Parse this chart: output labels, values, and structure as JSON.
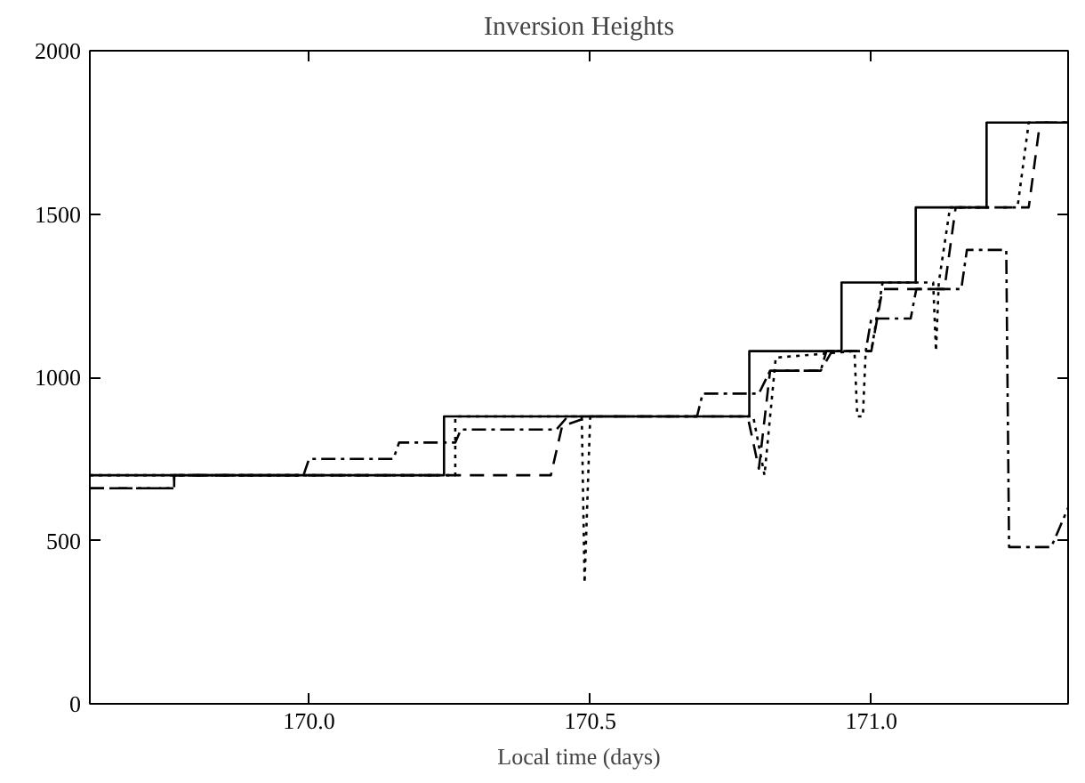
{
  "chart_data": {
    "type": "line",
    "title": "Inversion Heights",
    "xlabel": "Local time (days)",
    "xlim": [
      169.61,
      171.35
    ],
    "ylim": [
      0,
      2000
    ],
    "xticks": [
      {
        "value": 170.0,
        "label": "170.0"
      },
      {
        "value": 170.5,
        "label": "170.5"
      },
      {
        "value": 171.0,
        "label": "171.0"
      }
    ],
    "yticks": [
      0,
      500,
      1000,
      1500,
      2000
    ],
    "grid": false,
    "marker": "none",
    "series": [
      {
        "color": "#000000",
        "line_style": "solid",
        "x": [
          169.61,
          170.24,
          170.24,
          170.783,
          170.783,
          170.947,
          170.947,
          171.079,
          171.079,
          171.205,
          171.205,
          171.35
        ],
        "values": [
          700,
          700,
          880,
          880,
          1080,
          1080,
          1290,
          1290,
          1520,
          1520,
          1780,
          1780
        ]
      },
      {
        "color": "#000000",
        "line_style": "dotted",
        "x": [
          169.61,
          170.26,
          170.26,
          170.485,
          170.49,
          170.5,
          170.79,
          170.81,
          170.83,
          170.97,
          170.975,
          170.985,
          170.99,
          171.0,
          171.02,
          171.11,
          171.115,
          171.12,
          171.14,
          171.26,
          171.28,
          171.35
        ],
        "values": [
          700,
          700,
          880,
          880,
          370,
          880,
          880,
          700,
          1060,
          1080,
          880,
          880,
          1080,
          1080,
          1290,
          1290,
          1080,
          1290,
          1520,
          1520,
          1780,
          1780
        ]
      },
      {
        "color": "#000000",
        "line_style": "dashed",
        "x": [
          169.61,
          169.76,
          169.76,
          170.43,
          170.45,
          170.5,
          170.78,
          170.8,
          170.82,
          170.91,
          170.93,
          171.0,
          171.02,
          171.13,
          171.15,
          171.28,
          171.3,
          171.35
        ],
        "values": [
          660,
          660,
          700,
          700,
          850,
          880,
          880,
          720,
          1020,
          1020,
          1080,
          1080,
          1270,
          1270,
          1520,
          1520,
          1780,
          1780
        ]
      },
      {
        "color": "#000000",
        "line_style": "dashdot",
        "x": [
          169.61,
          169.76,
          169.76,
          169.99,
          170.0,
          170.15,
          170.16,
          170.26,
          170.27,
          170.44,
          170.46,
          170.69,
          170.7,
          170.8,
          170.82,
          170.91,
          170.92,
          170.99,
          171.0,
          171.07,
          171.08,
          171.16,
          171.17,
          171.24,
          171.245,
          171.32,
          171.35
        ],
        "values": [
          660,
          660,
          700,
          700,
          750,
          750,
          800,
          800,
          840,
          840,
          880,
          880,
          950,
          950,
          1020,
          1020,
          1080,
          1080,
          1180,
          1180,
          1270,
          1270,
          1390,
          1390,
          480,
          480,
          600
        ]
      }
    ]
  }
}
